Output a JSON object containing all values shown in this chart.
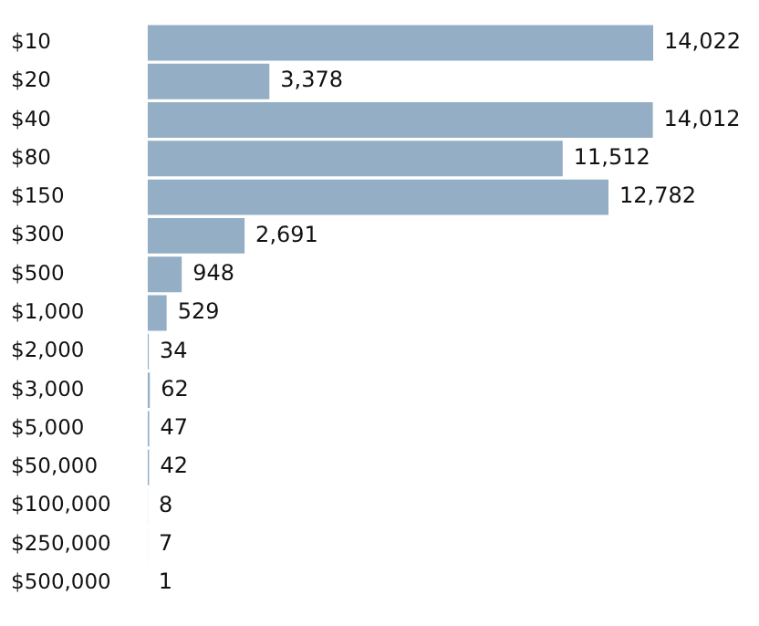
{
  "chart_data": {
    "type": "bar",
    "orientation": "horizontal",
    "categories": [
      "$10",
      "$20",
      "$40",
      "$80",
      "$150",
      "$300",
      "$500",
      "$1,000",
      "$2,000",
      "$3,000",
      "$5,000",
      "$50,000",
      "$100,000",
      "$250,000",
      "$500,000"
    ],
    "values": [
      14022,
      3378,
      14012,
      11512,
      12782,
      2691,
      948,
      529,
      34,
      62,
      47,
      42,
      8,
      7,
      1
    ],
    "value_labels": [
      "14,022",
      "3,378",
      "14,012",
      "11,512",
      "12,782",
      "2,691",
      "948",
      "529",
      "34",
      "62",
      "47",
      "42",
      "8",
      "7",
      "1"
    ],
    "color": "#93aec5"
  }
}
